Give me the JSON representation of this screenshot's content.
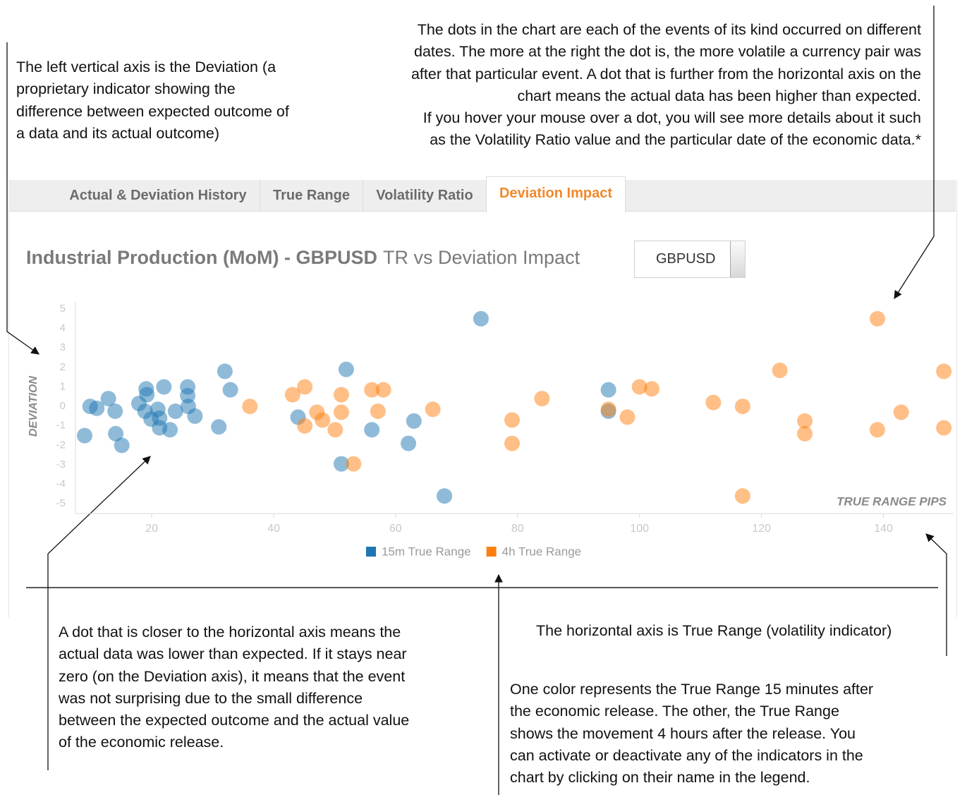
{
  "annotations": {
    "top_left": [
      "The left vertical axis is the Deviation (a",
      "proprietary indicator showing the",
      "difference between expected outcome of",
      "a data and  its actual outcome)"
    ],
    "top_right": [
      "The dots in the chart are each of the events of its kind occurred on different",
      "dates. The more at the right the dot is, the more volatile a currency pair was",
      "after that particular event. A dot that is further from the horizontal axis on the",
      "chart means the actual data has been higher than expected.",
      "If you hover your mouse over a dot, you will see more details about it such",
      "as the Volatility Ratio value and the particular date of the economic data.*"
    ],
    "bottom_left": [
      "A dot that is closer to the horizontal axis means the",
      "actual data was lower than expected. If it stays near",
      "zero (on the Deviation axis), it means that the event",
      "was not surprising due to the small difference",
      "between the expected outcome and the actual value",
      "of the economic release."
    ],
    "bottom_right_top": "The horizontal axis is True Range (volatility indicator)",
    "bottom_right": [
      "One color represents the True Range 15 minutes after",
      "the economic release. The other, the True Range",
      "shows the movement 4 hours after the release. You",
      "can activate or deactivate any of the indicators in the",
      "chart by clicking on their name in the legend."
    ]
  },
  "tabs": [
    "Actual & Deviation History",
    "True Range",
    "Volatility Ratio",
    "Deviation Impact"
  ],
  "dropdown": "GBPUSD",
  "chart_data": {
    "type": "scatter",
    "title_bold": "Industrial Production (MoM) - GBPUSD",
    "title_rest": "TR vs Deviation Impact",
    "x_label": "TRUE RANGE PIPS",
    "y_label": "DEVIATION",
    "xlim": [
      7.5,
      151.5
    ],
    "xticks": [
      20,
      40,
      60,
      80,
      100,
      120,
      140
    ],
    "ylim": [
      -5.5,
      5.4
    ],
    "yticks": [
      -5,
      -4,
      -3,
      -2,
      -1,
      0,
      1,
      2,
      3,
      4,
      5
    ],
    "series": [
      {
        "name": "15m True Range",
        "color": "#1f77b4",
        "x": [
          9.0,
          9.9,
          11.0,
          12.9,
          14.0,
          14.1,
          15.1,
          17.9,
          19.1,
          19.2,
          18.9,
          19.9,
          21.0,
          21.3,
          21.3,
          22.0,
          23.0,
          23.9,
          25.9,
          25.9,
          26.0,
          27.1,
          31.0,
          32.0,
          32.9,
          44.0,
          51.9,
          51.1,
          56.1,
          62.1,
          63.0,
          68.0,
          74.0,
          94.9,
          94.9
        ],
        "values": [
          -1.5,
          0,
          -0.1,
          0.4,
          -0.25,
          -1.4,
          -2.0,
          0.15,
          0.9,
          0.6,
          -0.25,
          -0.65,
          -0.15,
          -0.6,
          -1.1,
          1.0,
          -1.2,
          -0.25,
          1.0,
          0.55,
          0,
          -0.5,
          -1.05,
          1.8,
          0.85,
          -0.55,
          1.9,
          -2.95,
          -1.2,
          -1.9,
          -0.75,
          -4.6,
          4.5,
          0.85,
          -0.25
        ]
      },
      {
        "name": "4h True Range",
        "color": "#ff7f0e",
        "x": [
          36.1,
          43.1,
          45.1,
          45.1,
          47.1,
          48.0,
          50.1,
          51.1,
          51.1,
          53.1,
          56.1,
          58.0,
          57.1,
          66.1,
          79.1,
          79.1,
          84.0,
          94.9,
          98.0,
          100.0,
          102.0,
          112.1,
          116.9,
          116.9,
          123.0,
          127.1,
          127.1,
          139.0,
          139.0,
          142.9,
          149.9,
          149.9
        ],
        "values": [
          0,
          0.6,
          1.0,
          -1.0,
          -0.3,
          -0.7,
          -1.2,
          0.6,
          -0.3,
          -2.95,
          0.85,
          0.85,
          -0.25,
          -0.15,
          -0.7,
          -1.9,
          0.4,
          -0.15,
          -0.55,
          1.0,
          0.9,
          0.2,
          0,
          -4.6,
          1.85,
          -0.75,
          -1.4,
          4.5,
          -1.2,
          -0.3,
          1.8,
          -1.1
        ]
      }
    ]
  }
}
